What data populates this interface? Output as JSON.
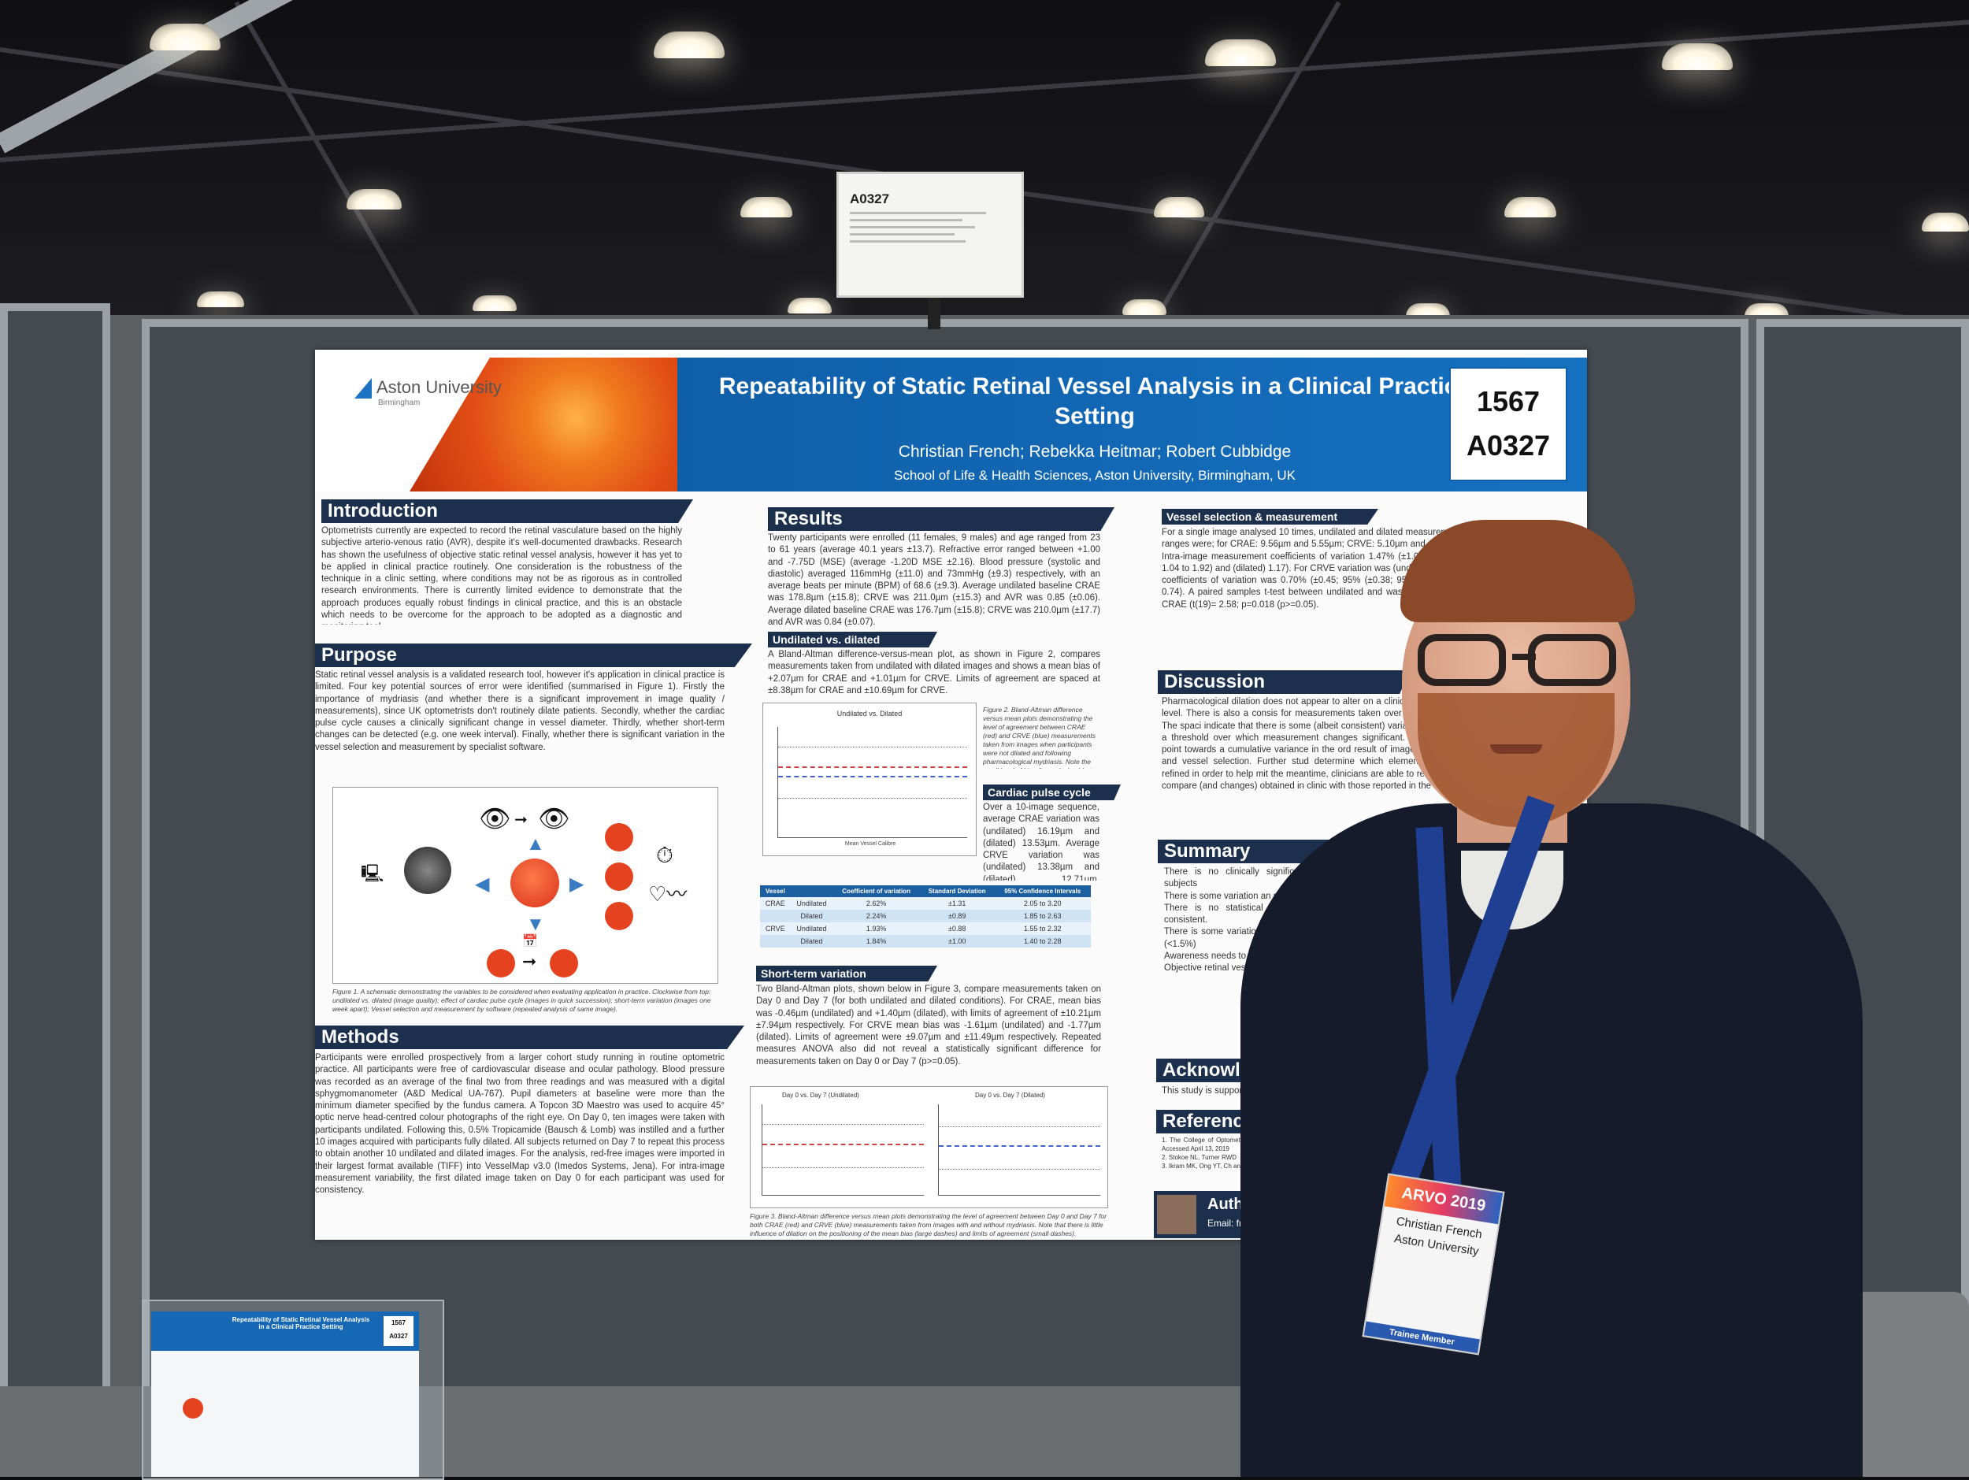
{
  "scene": {
    "booth_label": {
      "code": "A0327"
    }
  },
  "poster": {
    "logo": {
      "name": "Aston University",
      "city": "Birmingham"
    },
    "title": "Repeatability of Static Retinal Vessel Analysis in a Clinical Practice Setting",
    "authors": "Christian French; Rebekka Heitmar; Robert Cubbidge",
    "affiliation": "School of Life & Health Sciences, Aston University, Birmingham, UK",
    "poster_number": "1567",
    "board_code": "A0327",
    "sections": {
      "introduction": {
        "heading": "Introduction",
        "body": "Optometrists currently are expected to record the retinal vasculature based on the highly subjective arterio-venous ratio (AVR), despite it's well-documented drawbacks. Research has shown the usefulness of objective static retinal vessel analysis, however it has yet to be applied in clinical practice routinely. One consideration is the robustness of the technique in a clinic setting, where conditions may not be as rigorous as in controlled research environments. There is currently limited evidence to demonstrate that the approach produces equally robust findings in clinical practice, and this is an obstacle which needs to be overcome for the approach to be adopted as a diagnostic and monitoring tool."
      },
      "purpose": {
        "heading": "Purpose",
        "body": "Static retinal vessel analysis is a validated research tool, however it's application in clinical practice is limited. Four key potential sources of error were identified (summarised in Figure 1). Firstly the importance of mydriasis (and whether there is a significant improvement in image quality / measurements), since UK optometrists don't routinely dilate patients. Secondly, whether the cardiac pulse cycle causes a clinically significant change in vessel diameter. Thirdly, whether short-term changes can be detected (e.g. one week interval). Finally, whether there is significant variation in the vessel selection and measurement by specialist software.",
        "figure_caption": "Figure 1. A schematic demonstrating the variables to be considered when evaluating application in practice. Clockwise from top: undilated vs. dilated (image quality); effect of cardiac pulse cycle (images in quick succession); short-term variation (images one week apart); Vessel selection and measurement by software (repeated analysis of same image)."
      },
      "methods": {
        "heading": "Methods",
        "body": "Participants were enrolled prospectively from a larger cohort study running in routine optometric practice. All participants were free of cardiovascular disease and ocular pathology. Blood pressure was recorded as an average of the final two from three readings and was measured with a digital sphygmomanometer (A&D Medical UA-767). Pupil diameters at baseline were more than the minimum diameter specified by the fundus camera. A Topcon 3D Maestro was used to acquire 45° optic nerve head-centred colour photographs of the right eye. On Day 0, ten images were taken with participants undilated. Following this, 0.5% Tropicamide (Bausch & Lomb) was instilled and a further 10 images acquired with participants fully dilated. All subjects returned on Day 7 to repeat this process to obtain another 10 undilated and dilated images. For the analysis, red-free images were imported in their largest format available (TIFF) into VesselMap v3.0 (Imedos Systems, Jena). For intra-image measurement variability, the first dilated image taken on Day 0 for each participant was used for consistency."
      },
      "results": {
        "heading": "Results",
        "body": "Twenty participants were enrolled (11 females, 9 males) and age ranged from 23 to 61 years (average 40.1 years ±13.7). Refractive error ranged between +1.00 and -7.75D (MSE) (average -1.20D MSE ±2.16). Blood pressure (systolic and diastolic) averaged 116mmHg (±11.0) and 73mmHg (±9.3) respectively, with an average beats per minute (BPM) of 68.6 (±9.3). Average undilated baseline CRAE was 178.8µm (±15.8); CRVE was 211.0µm (±15.3) and AVR was 0.85 (±0.06). Average dilated baseline CRAE was 176.7µm (±15.8); CRVE was 210.0µm (±17.7) and AVR was 0.84 (±0.07).",
        "sub_undilated": "Undilated vs. dilated",
        "undilated_body": "A Bland-Altman difference-versus-mean plot, as shown in Figure 2, compares measurements taken from undilated with dilated images and shows a mean bias of +2.07µm for CRAE and +1.01µm for CRVE. Limits of agreement are spaced at ±8.38µm for CRAE and ±10.69µm for CRVE.",
        "fig2_title": "Undilated vs. Dilated",
        "fig2_xlabel": "Mean Vessel Calibre",
        "fig2_caption": "Figure 2. Bland-Altman difference versus mean plots demonstrating the level of agreement between CRAE (red) and CRVE (blue) measurements taken from images when participants were not dilated and following pharmacological mydriasis. Note the small level of bias (large dashes) but moderate spacing of limits of agreement (small dashes).",
        "sub_cardiac": "Cardiac pulse cycle",
        "cardiac_body": "Over a 10-image sequence, average CRAE variation was (undilated) 16.19µm and (dilated) 13.53µm. Average CRVE variation was (undilated) 13.38µm and (dilated) 12.71µm. Coefficients of variation across the sequences are shown in the table below ▼",
        "table": {
          "headers": [
            "Vessel",
            "",
            "Coefficient of variation",
            "Standard Deviation",
            "95% Confidence Intervals"
          ],
          "rows": [
            [
              "CRAE",
              "Undilated",
              "2.62%",
              "±1.31",
              "2.05 to 3.20"
            ],
            [
              "",
              "Dilated",
              "2.24%",
              "±0.89",
              "1.85 to 2.63"
            ],
            [
              "CRVE",
              "Undilated",
              "1.93%",
              "±0.88",
              "1.55 to 2.32"
            ],
            [
              "",
              "Dilated",
              "1.84%",
              "±1.00",
              "1.40 to 2.28"
            ]
          ]
        },
        "sub_short_term": "Short-term variation",
        "short_term_body": "Two Bland-Altman plots, shown below in Figure 3, compare measurements taken on Day 0 and Day 7 (for both undilated and dilated conditions). For CRAE, mean bias was -0.46µm (undilated) and +1.40µm (dilated), with limits of agreement of ±10.21µm ±7.94µm respectively. For CRVE mean bias was -1.61µm (undilated) and -1.77µm (dilated). Limits of agreement were ±9.07µm and ±11.49µm respectively. Repeated measures ANOVA also did not reveal a statistically significant difference for measurements taken on Day 0 or Day 7 (p>=0.05).",
        "fig3_left_title": "Day 0 vs. Day 7 (Undilated)",
        "fig3_right_title": "Day 0 vs. Day 7 (Dilated)",
        "fig3_caption": "Figure 3. Bland-Altman difference versus mean plots demonstrating the level of agreement between Day 0 and Day 7 for both CRAE (red) and CRVE (blue) measurements taken from images with and without mydriasis. Note that there is little influence of dilation on the positioning of the mean bias (large dashes) and limits of agreement (small dashes)."
      },
      "vessel_selection": {
        "heading": "Vessel selection & measurement",
        "body": "For a single image analysed 10 times, undilated and dilated measurement ranges were; for CRAE: 9.56µm and 5.55µm; CRVE: 5.10µm and 4.19µm. Intra-image measurement coefficients of variation 1.47% (±1.01; 95% CI 1.04 to 1.92) and (dilated) 1.17). For CRVE variation was (undilated) 13.38 coefficients of variation was 0.70% (±0.45; 95% (±0.38; 95% CI 0.40 to 0.74). A paired samples t-test between undilated and was significant for CRAE (t(19)= 2.58; p=0.018 (p>=0.05)."
      },
      "discussion": {
        "heading": "Discussion",
        "body": "Pharmacological dilation does not appear to alter on a clinically significant level. There is also a consis for measurements taken over short periods. The spaci indicate that there is some (albeit consistent) variation suggests a threshold over which measurement changes significant. The findings point towards a cumulative variance in the ord result of image acquisition and vessel selection. Further stud determine which elements can be refined in order to help mit the meantime, clinicians are able to reasonably compare (and changes) obtained in clinic with those reported in the"
      },
      "summary": {
        "heading": "Summary",
        "items": [
          "There is no clinically signific measurements whether subjects",
          "There is some variation an represented by a very small c",
          "There is no statistical measurements taken one we consistent.",
          "There is some variation the same region as ima variation (<1.5%)",
          "Awareness needs to be calibre measurement",
          "Objective retinal vess clinical examination o"
        ]
      },
      "acknowledgements": {
        "heading": "Acknowled",
        "body": "This study is supporte"
      },
      "references": {
        "heading": "Reference",
        "items": [
          "1. The College of Optometri optometrists.org/guidance Accessed April 13, 2019",
          "2. Stokoe NL, Turner RWD",
          "3. Ikram MK, Ong YT, Ch and future perspecti"
        ]
      },
      "author_box": {
        "label": "Auth",
        "email": "Email: fre"
      }
    }
  },
  "badge": {
    "event": "ARVO 2019",
    "name": "Christian French",
    "org": "Aston University",
    "type": "Trainee Member"
  },
  "mini_poster": {
    "title": "Repeatability of Static Retinal Vessel Analysis in a Clinical Practice Setting",
    "number": "1567",
    "code": "A0327"
  }
}
